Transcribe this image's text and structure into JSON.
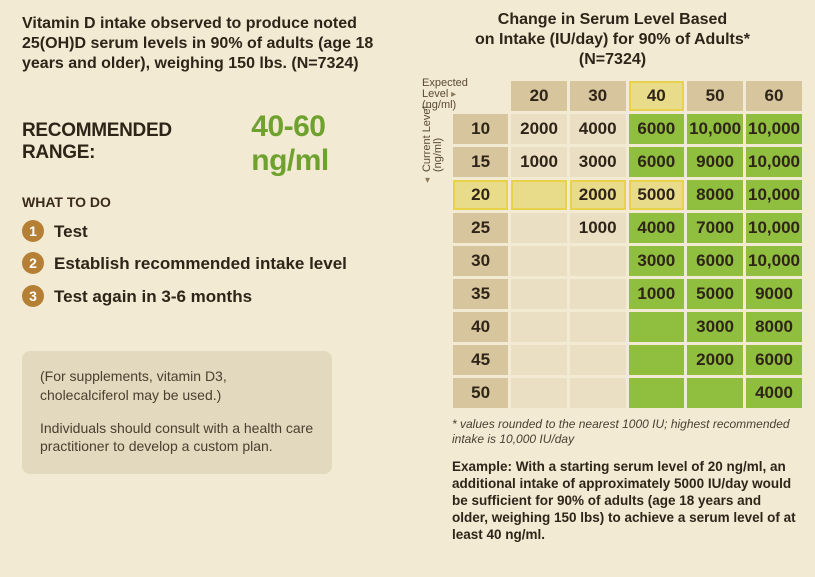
{
  "background_color": "#f2ead3",
  "text_color": "#2f2418",
  "accent_orange": "#b58035",
  "accent_green": "#6ea12e",
  "cell_green": "#90be3e",
  "cell_tan": "#eadfc3",
  "cell_header": "#d7c59d",
  "highlight": "#e8d24a",
  "intro": "Vitamin D intake observed to produce noted 25(OH)D serum levels in 90% of adults (age 18 years and older), weighing 150 lbs. (N=7324)",
  "recommended_label": "RECOMMENDED RANGE:",
  "recommended_value": "40-60 ng/ml",
  "what_to_do_heading": "WHAT TO DO",
  "steps": [
    "Test",
    "Establish recommended intake level",
    "Test again in 3-6 months"
  ],
  "note_para1": "(For supplements, vitamin D3, cholecalciferol may be used.)",
  "note_para2": "Individuals should consult with a health care practitioner to develop a custom plan.",
  "chart_title_line1": "Change in Serum Level Based",
  "chart_title_line2": "on Intake (IU/day) for 90% of Adults*",
  "chart_title_line3": "(N=7324)",
  "axis_top_label_l1": "Expected Level",
  "axis_top_label_l2": "(ng/ml)",
  "axis_left_label_l1": "Current Level",
  "axis_left_label_l2": "(ng/ml)",
  "table": {
    "expected_levels": [
      20,
      30,
      40,
      50,
      60
    ],
    "current_levels": [
      10,
      15,
      20,
      25,
      30,
      35,
      40,
      45,
      50
    ],
    "highlight_expected": 40,
    "highlight_current": 20,
    "cells": [
      [
        {
          "v": "2000",
          "g": false
        },
        {
          "v": "4000",
          "g": false
        },
        {
          "v": "6000",
          "g": true
        },
        {
          "v": "10,000",
          "g": true
        },
        {
          "v": "10,000",
          "g": true
        }
      ],
      [
        {
          "v": "1000",
          "g": false
        },
        {
          "v": "3000",
          "g": false
        },
        {
          "v": "6000",
          "g": true
        },
        {
          "v": "9000",
          "g": true
        },
        {
          "v": "10,000",
          "g": true
        }
      ],
      [
        {
          "v": "",
          "g": false
        },
        {
          "v": "2000",
          "g": false
        },
        {
          "v": "5000",
          "g": true
        },
        {
          "v": "8000",
          "g": true
        },
        {
          "v": "10,000",
          "g": true
        }
      ],
      [
        {
          "v": "",
          "g": false
        },
        {
          "v": "1000",
          "g": false
        },
        {
          "v": "4000",
          "g": true
        },
        {
          "v": "7000",
          "g": true
        },
        {
          "v": "10,000",
          "g": true
        }
      ],
      [
        {
          "v": "",
          "g": false
        },
        {
          "v": "",
          "g": false
        },
        {
          "v": "3000",
          "g": true
        },
        {
          "v": "6000",
          "g": true
        },
        {
          "v": "10,000",
          "g": true
        }
      ],
      [
        {
          "v": "",
          "g": false
        },
        {
          "v": "",
          "g": false
        },
        {
          "v": "1000",
          "g": true
        },
        {
          "v": "5000",
          "g": true
        },
        {
          "v": "9000",
          "g": true
        }
      ],
      [
        {
          "v": "",
          "g": false
        },
        {
          "v": "",
          "g": false
        },
        {
          "v": "",
          "g": true
        },
        {
          "v": "3000",
          "g": true
        },
        {
          "v": "8000",
          "g": true
        }
      ],
      [
        {
          "v": "",
          "g": false
        },
        {
          "v": "",
          "g": false
        },
        {
          "v": "",
          "g": true
        },
        {
          "v": "2000",
          "g": true
        },
        {
          "v": "6000",
          "g": true
        }
      ],
      [
        {
          "v": "",
          "g": false
        },
        {
          "v": "",
          "g": false
        },
        {
          "v": "",
          "g": true
        },
        {
          "v": "",
          "g": true
        },
        {
          "v": "4000",
          "g": true
        }
      ]
    ]
  },
  "footnote": "* values rounded to the nearest 1000 IU; highest recommended intake is 10,000 IU/day",
  "example": "Example: With a starting serum level of 20 ng/ml, an additional intake of approximately 5000 IU/day would be sufficient for 90% of adults (age 18 years and older, weighing 150 lbs) to achieve a serum level of at least 40 ng/ml."
}
